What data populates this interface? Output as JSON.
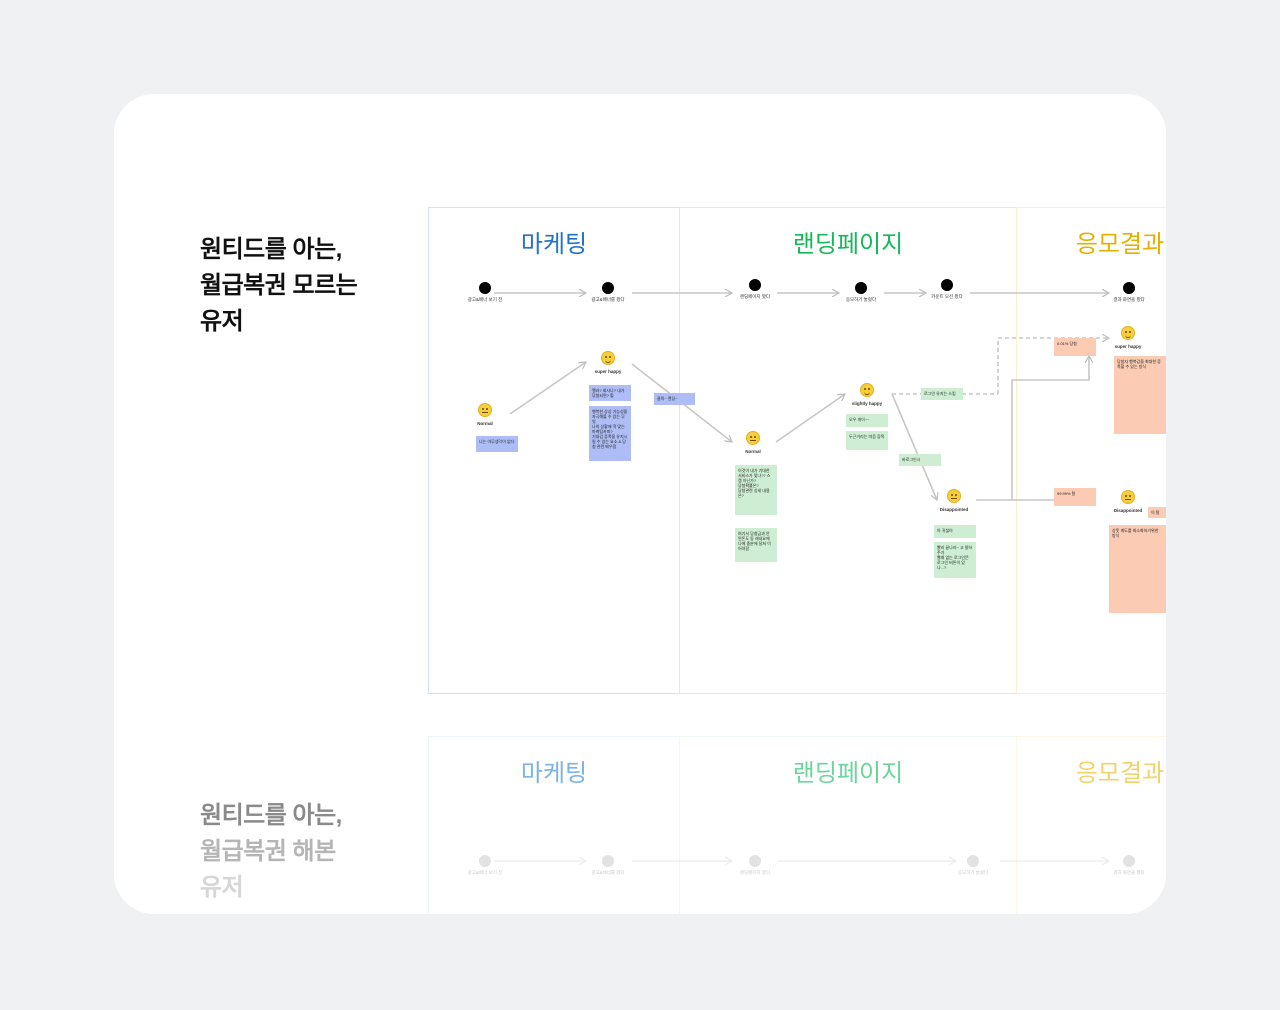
{
  "sections": [
    {
      "heading": [
        "원티드를 아는,",
        "월급복권 모르는",
        "유저"
      ],
      "lanes": [
        {
          "title": "마케팅",
          "color": "#2473c9"
        },
        {
          "title": "랜딩페이지",
          "color": "#16b85a"
        },
        {
          "title": "응모결과",
          "color": "#e3b100"
        }
      ],
      "steps": [
        "광고&배너 보기 전",
        "광고&배너를 봤다",
        "랜딩페이지 봤다",
        "응모하기 눌렀다",
        "카운트 모션 봤다",
        "결과 화면을 봤다"
      ],
      "emotions": [
        "Normal",
        "super happy",
        "Normal",
        "slightly happy",
        "Disappointed",
        "super happy",
        "Disappointed"
      ],
      "notes": [
        "나는 아무생각이 없다",
        "앨라? 회사나? 내가 당첨되면? 헐",
        "행복한 상상 기능성을 자극해볼 수 있는 무엇",
        "나의 상황에 딱 맞는 마케팅카피?",
        "기대감 증폭을 유지시킬 수 있는 요소 & 당첨 관련 배우함",
        "클릭~ 랜딩~",
        "이것이 내가 기대한 서비스가 맞나?? 스캠 아닌가?",
        "당첨확률은?",
        "당첨관련 상세 내용은?",
        "여기서 당첨금과 안 된돈도 동 래내요에 나에 중분에 달쳐 이어야함",
        "오우 개이~~",
        "두근거리는 마음 증폭",
        "로그인 유지는 스킵",
        "바로그인시",
        "아 귀찮아",
        "빨리 끝나라~ 고 말하주기",
        "빨래 없는 로그인뜬 로그인 버튼이 있나...?",
        "0.01% 당첨",
        "당첨자 행복감을 최대한 증폭할 수 있는 방식",
        "99.99% 탈",
        "이 탈",
        "상못 계도를 최소화하기위한 방식"
      ]
    },
    {
      "heading": [
        "원티드를 아는,",
        "월급복권 해본",
        "유저"
      ],
      "lanes": [
        {
          "title": "마케팅",
          "color": "#2473c9"
        },
        {
          "title": "랜딩페이지",
          "color": "#16b85a"
        },
        {
          "title": "응모결과",
          "color": "#e3b100"
        }
      ],
      "steps": [
        "광고&배너 보기 전",
        "광고&배너를 봤다",
        "랜딩페이지 봤다",
        "응모하기 눌렀다",
        "결과 화면을 봤다"
      ]
    }
  ]
}
